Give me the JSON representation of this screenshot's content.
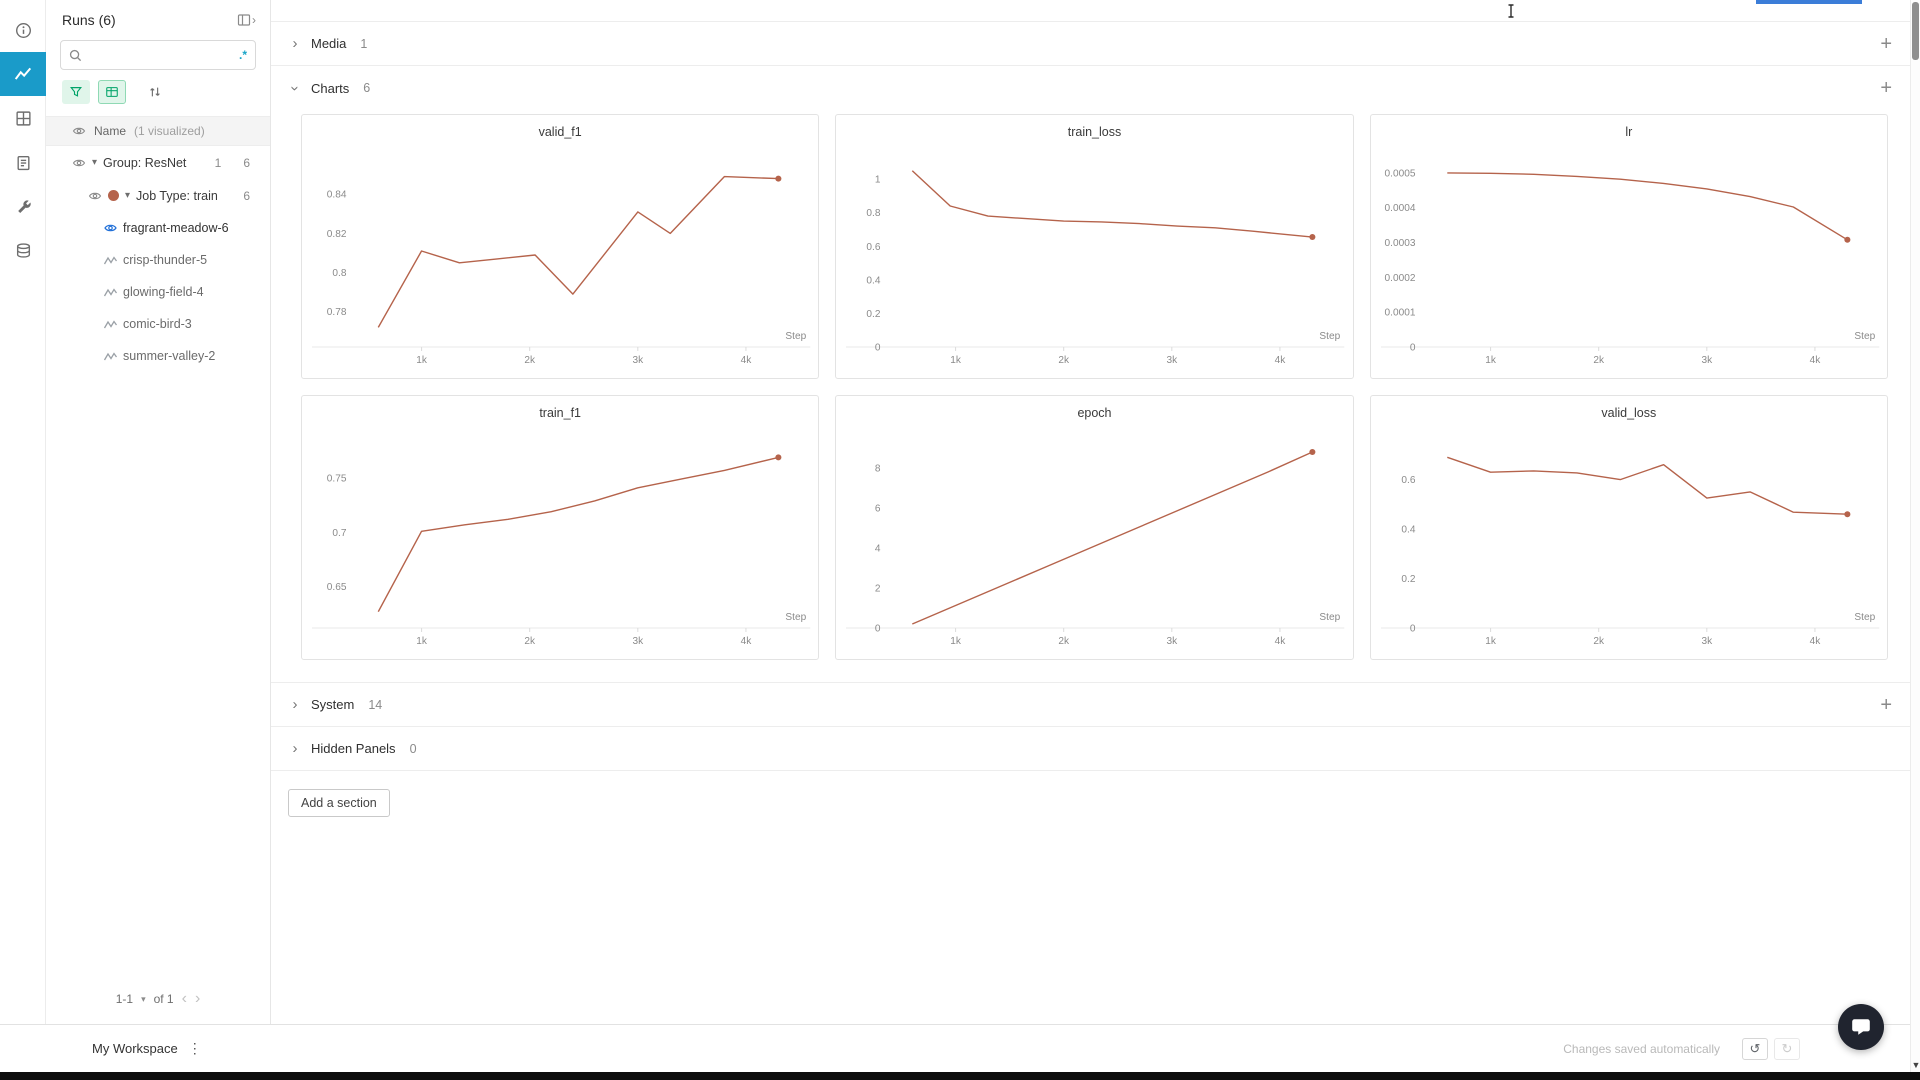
{
  "colors": {
    "accent_line": "#b5634b",
    "rail_active_bg": "#1a9bc9",
    "green_icon": "#00a368",
    "eye_blue": "#2170d8",
    "partial_bar_blue": "#3b7dd8"
  },
  "rail": {
    "icons": [
      "info-icon",
      "workspace-charts-icon",
      "panels-icon",
      "reports-icon",
      "tools-icon",
      "artifacts-icon"
    ]
  },
  "runs_panel": {
    "title": "Runs (6)",
    "search": {
      "value": "",
      "placeholder": ""
    },
    "regex_label": ".*",
    "name_row": {
      "label": "Name",
      "sub": "(1 visualized)"
    },
    "tree": {
      "group": {
        "label": "Group: ResNet",
        "badge": "1",
        "count": "6"
      },
      "jobtype": {
        "label": "Job Type: train",
        "count": "6"
      }
    },
    "runs": [
      {
        "name": "fragrant-meadow-6",
        "visualized": true
      },
      {
        "name": "crisp-thunder-5",
        "visualized": false
      },
      {
        "name": "glowing-field-4",
        "visualized": false
      },
      {
        "name": "comic-bird-3",
        "visualized": false
      },
      {
        "name": "summer-valley-2",
        "visualized": false
      }
    ],
    "pagination": {
      "range": "1-1",
      "of": "of 1"
    }
  },
  "sections": {
    "media": {
      "label": "Media",
      "count": "1"
    },
    "charts": {
      "label": "Charts",
      "count": "6"
    },
    "system": {
      "label": "System",
      "count": "14"
    },
    "hidden": {
      "label": "Hidden Panels",
      "count": "0"
    },
    "add_section_label": "Add a section"
  },
  "footer": {
    "workspace": "My Workspace",
    "status": "Changes saved automatically"
  },
  "chart_data": [
    {
      "type": "line",
      "title": "valid_f1",
      "xlabel": "Step",
      "color": "#b5634b",
      "xlim": [
        380,
        4520
      ],
      "ylim": [
        0.762,
        0.858
      ],
      "x": [
        600,
        1000,
        1350,
        1700,
        2050,
        2400,
        3000,
        3300,
        3800,
        4300
      ],
      "y": [
        0.772,
        0.811,
        0.805,
        0.807,
        0.809,
        0.789,
        0.831,
        0.82,
        0.849,
        0.848
      ],
      "yticks": [
        [
          0.78,
          "0.78"
        ],
        [
          0.8,
          "0.8"
        ],
        [
          0.82,
          "0.82"
        ],
        [
          0.84,
          "0.84"
        ]
      ],
      "xticks": [
        [
          1000,
          "1k"
        ],
        [
          2000,
          "2k"
        ],
        [
          3000,
          "3k"
        ],
        [
          4000,
          "4k"
        ]
      ]
    },
    {
      "type": "line",
      "title": "train_loss",
      "xlabel": "Step",
      "color": "#b5634b",
      "xlim": [
        380,
        4520
      ],
      "ylim": [
        0,
        1.12
      ],
      "x": [
        600,
        950,
        1300,
        1650,
        2000,
        2350,
        2700,
        3050,
        3400,
        3750,
        4300
      ],
      "y": [
        1.05,
        0.84,
        0.78,
        0.765,
        0.75,
        0.745,
        0.735,
        0.72,
        0.71,
        0.69,
        0.655
      ],
      "yticks": [
        [
          0,
          "0"
        ],
        [
          0.2,
          "0.2"
        ],
        [
          0.4,
          "0.4"
        ],
        [
          0.6,
          "0.6"
        ],
        [
          0.8,
          "0.8"
        ],
        [
          1,
          "1"
        ]
      ],
      "xticks": [
        [
          1000,
          "1k"
        ],
        [
          2000,
          "2k"
        ],
        [
          3000,
          "3k"
        ],
        [
          4000,
          "4k"
        ]
      ]
    },
    {
      "type": "line",
      "title": "lr",
      "xlabel": "Step",
      "color": "#b5634b",
      "xlim": [
        380,
        4520
      ],
      "ylim": [
        0,
        0.00054
      ],
      "x": [
        600,
        1000,
        1400,
        1800,
        2200,
        2600,
        3000,
        3400,
        3800,
        4300
      ],
      "y": [
        0.0005,
        0.000499,
        0.000496,
        0.00049,
        0.000482,
        0.00047,
        0.000454,
        0.000432,
        0.000402,
        0.000308
      ],
      "yticks": [
        [
          0,
          "0"
        ],
        [
          0.0001,
          "0.0001"
        ],
        [
          0.0002,
          "0.0002"
        ],
        [
          0.0003,
          "0.0003"
        ],
        [
          0.0004,
          "0.0004"
        ],
        [
          0.0005,
          "0.0005"
        ]
      ],
      "xticks": [
        [
          1000,
          "1k"
        ],
        [
          2000,
          "2k"
        ],
        [
          3000,
          "3k"
        ],
        [
          4000,
          "4k"
        ]
      ]
    },
    {
      "type": "line",
      "title": "train_f1",
      "xlabel": "Step",
      "color": "#b5634b",
      "xlim": [
        380,
        4520
      ],
      "ylim": [
        0.612,
        0.785
      ],
      "x": [
        600,
        1000,
        1400,
        1800,
        2200,
        2600,
        3000,
        3400,
        3800,
        4300
      ],
      "y": [
        0.627,
        0.701,
        0.707,
        0.712,
        0.719,
        0.729,
        0.741,
        0.749,
        0.757,
        0.769
      ],
      "yticks": [
        [
          0.65,
          "0.65"
        ],
        [
          0.7,
          "0.7"
        ],
        [
          0.75,
          "0.75"
        ]
      ],
      "xticks": [
        [
          1000,
          "1k"
        ],
        [
          2000,
          "2k"
        ],
        [
          3000,
          "3k"
        ],
        [
          4000,
          "4k"
        ]
      ]
    },
    {
      "type": "line",
      "title": "epoch",
      "xlabel": "Step",
      "color": "#b5634b",
      "xlim": [
        380,
        4520
      ],
      "ylim": [
        0,
        9.4
      ],
      "x": [
        600,
        1011,
        1422,
        1833,
        2244,
        2656,
        3067,
        3478,
        3889,
        4300
      ],
      "y": [
        0.2,
        1.15,
        2.1,
        3.05,
        4.0,
        4.95,
        5.9,
        6.85,
        7.8,
        8.8
      ],
      "yticks": [
        [
          0,
          "0"
        ],
        [
          2,
          "2"
        ],
        [
          4,
          "4"
        ],
        [
          6,
          "6"
        ],
        [
          8,
          "8"
        ]
      ],
      "xticks": [
        [
          1000,
          "1k"
        ],
        [
          2000,
          "2k"
        ],
        [
          3000,
          "3k"
        ],
        [
          4000,
          "4k"
        ]
      ]
    },
    {
      "type": "line",
      "title": "valid_loss",
      "xlabel": "Step",
      "color": "#b5634b",
      "xlim": [
        380,
        4520
      ],
      "ylim": [
        0,
        0.76
      ],
      "x": [
        600,
        1000,
        1400,
        1800,
        2200,
        2600,
        3000,
        3400,
        3800,
        4300
      ],
      "y": [
        0.69,
        0.63,
        0.635,
        0.627,
        0.6,
        0.66,
        0.525,
        0.55,
        0.468,
        0.46
      ],
      "yticks": [
        [
          0,
          "0"
        ],
        [
          0.2,
          "0.2"
        ],
        [
          0.4,
          "0.4"
        ],
        [
          0.6,
          "0.6"
        ]
      ],
      "xticks": [
        [
          1000,
          "1k"
        ],
        [
          2000,
          "2k"
        ],
        [
          3000,
          "3k"
        ],
        [
          4000,
          "4k"
        ]
      ]
    }
  ]
}
